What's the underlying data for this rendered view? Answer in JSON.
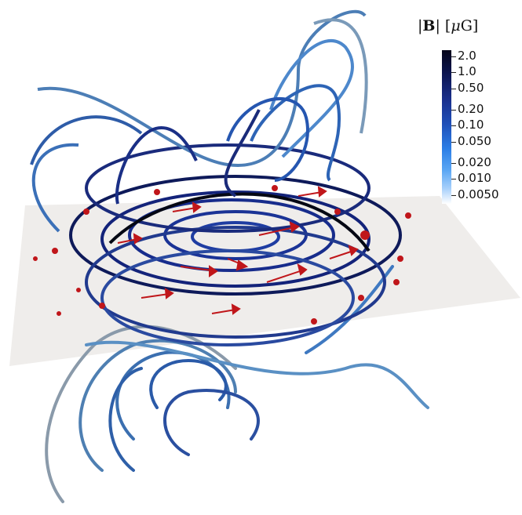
{
  "colorbar": {
    "title_prefix": "|",
    "title_bold": "B",
    "title_mid": "| [",
    "title_mu": "μ",
    "title_unit": "G]",
    "ticks": [
      "2.0",
      "1.0",
      "0.50",
      "0.20",
      "0.10",
      "0.050",
      "0.020",
      "0.010",
      "0.0050"
    ],
    "colors": [
      "#06051a",
      "#0c1550",
      "#1a2f8c",
      "#1f4fb8",
      "#2c7ee6",
      "#5aa6f4",
      "#a7d0fb",
      "#ffffff"
    ]
  },
  "scene": {
    "plane_color": "#efedeb",
    "arrow_color": "#c0161a"
  }
}
